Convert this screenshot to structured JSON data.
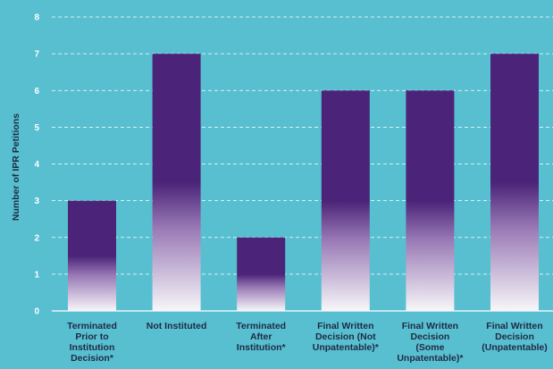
{
  "chart_data": {
    "type": "bar",
    "title": "",
    "xlabel": "",
    "ylabel": "Number of IPR Petitions",
    "ylim": [
      0,
      8
    ],
    "yticks": [
      0,
      1,
      2,
      3,
      4,
      5,
      6,
      7,
      8
    ],
    "grid": true,
    "legend": "none",
    "categories": [
      "Terminated Prior to Institution Decision*",
      "Not Instituted",
      "Terminated After Institution*",
      "Final Written Decision (Not Unpatentable)*",
      "Final Written Decision (Some Unpatentable)*",
      "Final Written Decision (Unpatentable)"
    ],
    "category_lines": [
      [
        "Terminated",
        "Prior to",
        "Institution",
        "Decision*"
      ],
      [
        "Not Instituted"
      ],
      [
        "Terminated",
        "After",
        "Institution*"
      ],
      [
        "Final Written",
        "Decision (Not",
        "Unpatentable)*"
      ],
      [
        "Final Written",
        "Decision",
        "(Some",
        "Unpatentable)*"
      ],
      [
        "Final Written",
        "Decision",
        "(Unpatentable)"
      ]
    ],
    "values": [
      3,
      7,
      2,
      6,
      6,
      7
    ]
  },
  "colors": {
    "background": "#58bfd0",
    "bar_top": "#4b2378",
    "bar_bottom": "#f5f4f7",
    "gridline": "#ffffff",
    "tick_text": "#ffffff",
    "label_text": "#1f2a44"
  }
}
